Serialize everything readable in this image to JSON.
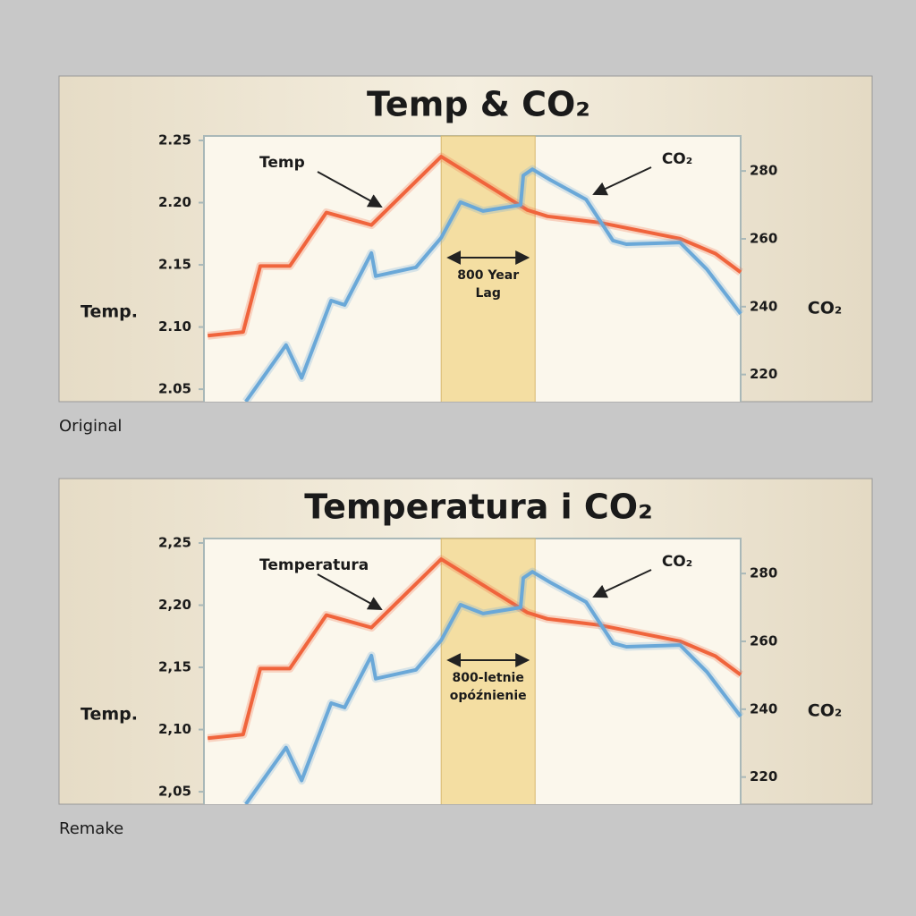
{
  "chart_data": [
    {
      "type": "line",
      "title": "Temp & CO₂",
      "caption": "Original",
      "y_label": "Temp.",
      "y2_label": "CO₂",
      "annotations": {
        "temp": "Temp",
        "co2": "CO₂",
        "lag": [
          "800 Year",
          "Lag"
        ]
      },
      "xlim": [
        0,
        100
      ],
      "lag_band": [
        44.2,
        61.7
      ],
      "ylim": [
        2.04,
        2.25
      ],
      "yticks": [
        2.25,
        {
          "value": 2.2,
          "label": "2.20"
        },
        2.15,
        {
          "value": 2.1,
          "label": "2.10"
        },
        2.05
      ],
      "y2lim": [
        212,
        289
      ],
      "y2ticks": [
        220,
        240,
        260,
        280
      ],
      "series": [
        {
          "name": "Temp",
          "color": "#f0643c",
          "x": [
            0.7,
            7.3,
            10.5,
            16,
            22.8,
            31.2,
            44.2,
            60.3,
            64,
            73.7,
            88.7,
            95.3,
            100
          ],
          "values": [
            2.093,
            2.096,
            2.149,
            2.149,
            2.192,
            2.182,
            2.237,
            2.194,
            2.189,
            2.184,
            2.171,
            2.159,
            2.144
          ]
        },
        {
          "name": "CO₂",
          "color": "#6aa8d8",
          "axis": "y2",
          "x": [
            7.8,
            15.3,
            18.2,
            23.7,
            26.2,
            31.2,
            32,
            39.5,
            44.2,
            47.8,
            52,
            59,
            59.5,
            61.2,
            64.5,
            71.2,
            76.2,
            78.7,
            88.7,
            93.7,
            100
          ],
          "values": [
            212,
            228.7,
            219,
            241.8,
            240.5,
            255.8,
            249,
            251.6,
            260.3,
            270.8,
            268.2,
            270,
            278.7,
            280.5,
            277.4,
            271.6,
            259.5,
            258.4,
            258.9,
            251,
            237.9
          ]
        }
      ]
    },
    {
      "type": "line",
      "title": "Temperatura i CO₂",
      "caption": "Remake",
      "y_label": "Temp.",
      "y2_label": "CO₂",
      "annotations": {
        "temp": "Temperatura",
        "co2": "CO₂",
        "lag": [
          "800-letnie",
          "opóźnienie"
        ]
      },
      "xlim": [
        0,
        100
      ],
      "lag_band": [
        44.2,
        61.7
      ],
      "ylim": [
        2.04,
        2.25
      ],
      "yticks": [
        {
          "value": 2.25,
          "label": "2,25"
        },
        {
          "value": 2.2,
          "label": "2,20"
        },
        {
          "value": 2.15,
          "label": "2,15"
        },
        {
          "value": 2.1,
          "label": "2,10"
        },
        {
          "value": 2.05,
          "label": "2,05"
        }
      ],
      "y2lim": [
        212,
        289
      ],
      "y2ticks": [
        220,
        240,
        260,
        280
      ],
      "series": [
        {
          "name": "Temperatura",
          "color": "#f0643c",
          "x": [
            0.7,
            7.3,
            10.5,
            16,
            22.8,
            31.2,
            44.2,
            60.3,
            64,
            73.7,
            88.7,
            95.3,
            100
          ],
          "values": [
            2.093,
            2.096,
            2.149,
            2.149,
            2.192,
            2.182,
            2.237,
            2.194,
            2.189,
            2.184,
            2.171,
            2.159,
            2.144
          ]
        },
        {
          "name": "CO₂",
          "color": "#6aa8d8",
          "axis": "y2",
          "x": [
            7.8,
            15.3,
            18.2,
            23.7,
            26.2,
            31.2,
            32,
            39.5,
            44.2,
            47.8,
            52,
            59,
            59.5,
            61.2,
            64.5,
            71.2,
            76.2,
            78.7,
            88.7,
            93.7,
            100
          ],
          "values": [
            212,
            228.7,
            219,
            241.8,
            240.5,
            255.8,
            249,
            251.6,
            260.3,
            270.8,
            268.2,
            270,
            278.7,
            280.5,
            277.4,
            271.6,
            259.5,
            258.4,
            258.9,
            251,
            237.9
          ]
        }
      ]
    }
  ]
}
